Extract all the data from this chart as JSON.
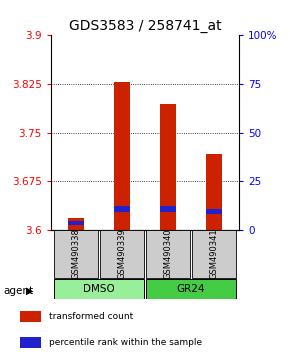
{
  "title": "GDS3583 / 258741_at",
  "samples": [
    "GSM490338",
    "GSM490339",
    "GSM490340",
    "GSM490341"
  ],
  "red_tops": [
    3.618,
    3.828,
    3.795,
    3.718
  ],
  "blue_tops": [
    3.614,
    3.637,
    3.637,
    3.633
  ],
  "blue_bottoms": [
    3.608,
    3.628,
    3.628,
    3.625
  ],
  "ylim": [
    3.6,
    3.9
  ],
  "left_ticks": [
    3.6,
    3.675,
    3.75,
    3.825,
    3.9
  ],
  "right_ticks": [
    0,
    25,
    50,
    75,
    100
  ],
  "right_tick_labels": [
    "0",
    "25",
    "50",
    "75",
    "100%"
  ],
  "hline_values": [
    3.675,
    3.75,
    3.825
  ],
  "red_color": "#CC2200",
  "blue_color": "#2222CC",
  "title_fontsize": 10,
  "tick_fontsize": 7.5,
  "bar_width": 0.35,
  "legend_items": [
    {
      "color": "#CC2200",
      "label": "transformed count"
    },
    {
      "color": "#2222CC",
      "label": "percentile rank within the sample"
    }
  ],
  "dmso_color": "#99EE99",
  "gr24_color": "#44CC44",
  "sample_box_color": "#cccccc"
}
